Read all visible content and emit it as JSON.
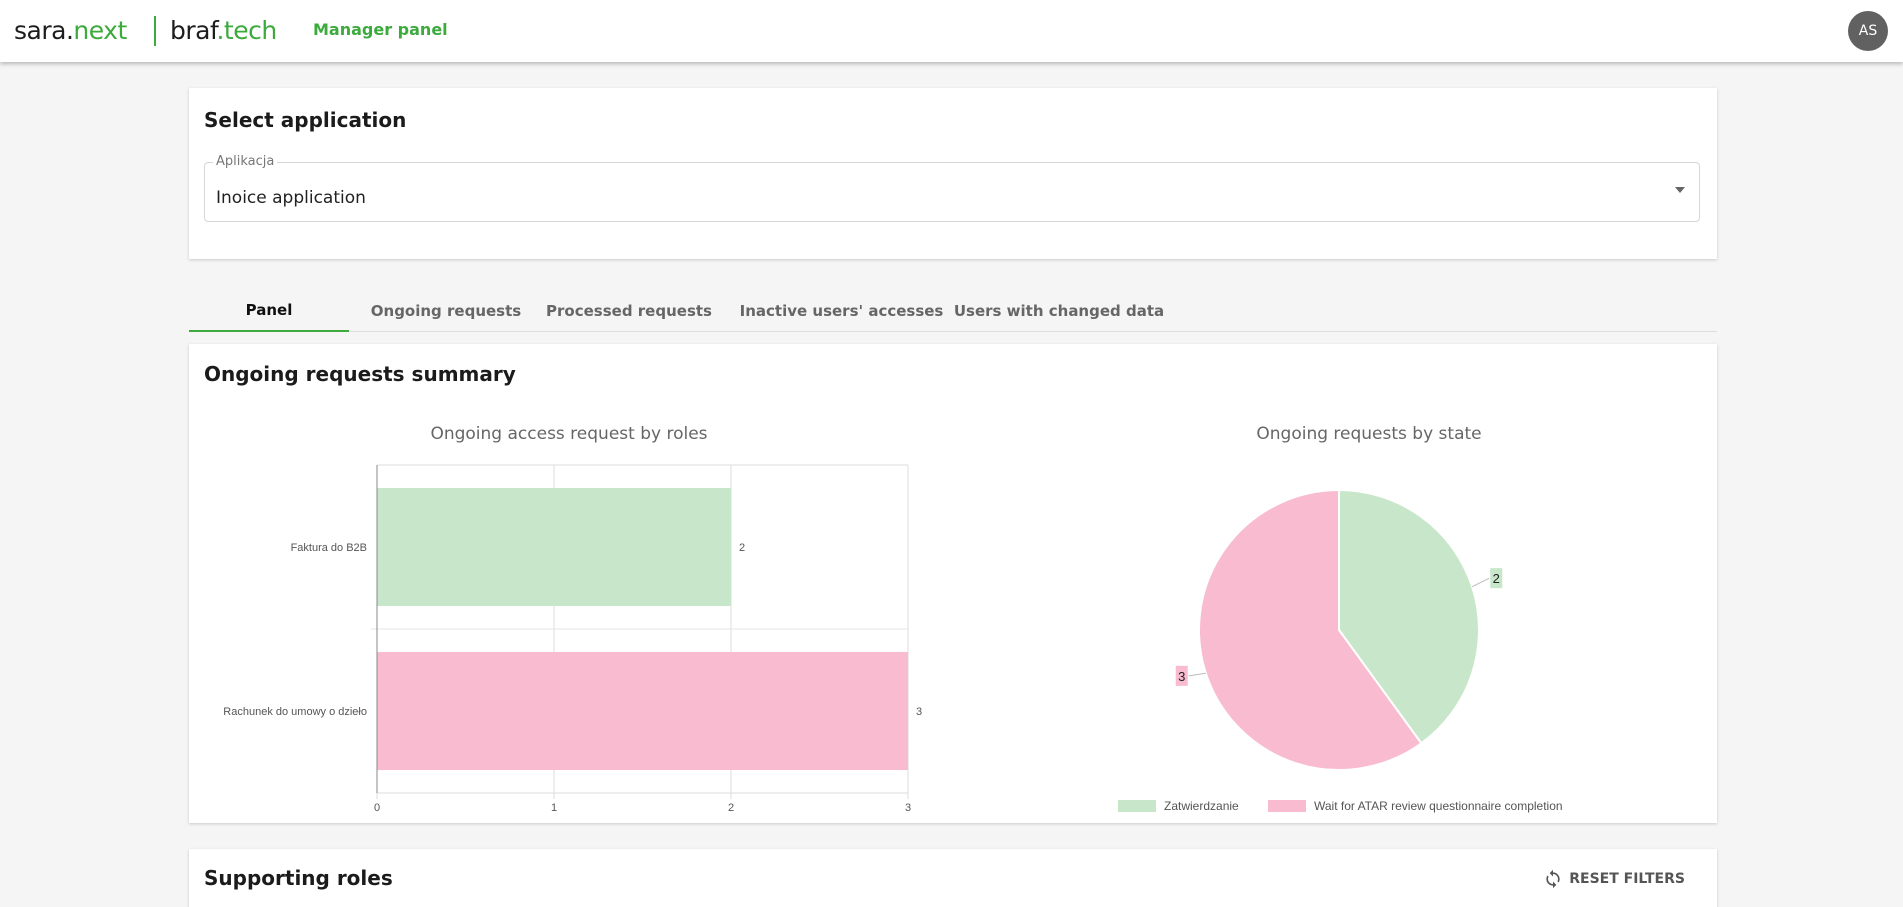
{
  "header": {
    "logo_sara_main": "sara.",
    "logo_sara_accent": "next",
    "logo_braf_main": "braf",
    "logo_braf_accent": ".tech",
    "panel_label": "Manager panel",
    "avatar_initials": "AS"
  },
  "select_app": {
    "title": "Select application",
    "field_label": "Aplikacja",
    "field_value": "Inoice application"
  },
  "tabs": {
    "panel": "Panel",
    "ongoing": "Ongoing requests",
    "processed": "Processed requests",
    "inactive": "Inactive users' accesses",
    "changed": "Users with changed data"
  },
  "summary": {
    "title": "Ongoing requests summary"
  },
  "supporting": {
    "title": "Supporting roles",
    "reset_label": "RESET FILTERS"
  },
  "colors": {
    "accent": "#3daa3d",
    "bar_green": "#c8e6c9",
    "bar_pink": "#f8bbd0"
  },
  "chart_data": [
    {
      "type": "bar",
      "orientation": "horizontal",
      "title": "Ongoing access request by roles",
      "categories": [
        "Faktura do B2B",
        "Rachunek do umowy o dzieło"
      ],
      "values": [
        2,
        3
      ],
      "xlim": [
        0,
        3
      ],
      "xticks": [
        0,
        1,
        2,
        3
      ],
      "grid": true
    },
    {
      "type": "pie",
      "title": "Ongoing requests by state",
      "labels": [
        "Zatwierdzanie",
        "Wait for ATAR review questionnaire completion"
      ],
      "values": [
        2,
        3
      ],
      "legend": "bottom"
    }
  ]
}
